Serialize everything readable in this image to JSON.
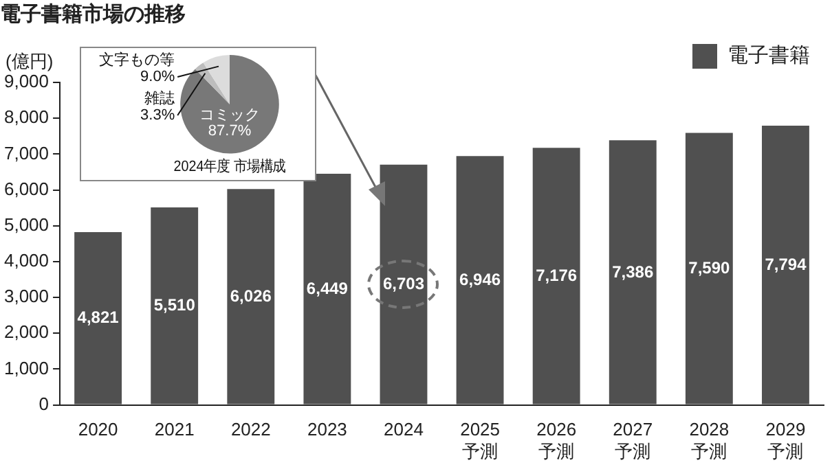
{
  "chart_data": [
    {
      "type": "bar",
      "title": "電子書籍市場の推移",
      "ylabel": "(億円)",
      "categories": [
        "2020",
        "2021",
        "2022",
        "2023",
        "2024",
        "2025\n予測",
        "2026\n予測",
        "2027\n予測",
        "2028\n予測",
        "2029\n予測"
      ],
      "series": [
        {
          "name": "電子書籍",
          "color": "#505050",
          "values": [
            4821,
            5510,
            6026,
            6449,
            6703,
            6946,
            7176,
            7386,
            7590,
            7794
          ],
          "value_labels": [
            "4,821",
            "5,510",
            "6,026",
            "6,449",
            "6,703",
            "6,946",
            "7,176",
            "7,386",
            "7,590",
            "7,794"
          ]
        }
      ],
      "ylim": [
        0,
        9000
      ],
      "yticks": [
        0,
        {
          "value": 1000,
          "label": "1,000"
        },
        {
          "value": 2000,
          "label": "2,000"
        },
        {
          "value": 3000,
          "label": "3,000"
        },
        {
          "value": 4000,
          "label": "4,000"
        },
        {
          "value": 5000,
          "label": "5,000"
        },
        {
          "value": 6000,
          "label": "6,000"
        },
        {
          "value": 7000,
          "label": "7,000"
        },
        {
          "value": 8000,
          "label": "8,000"
        },
        {
          "value": 9000,
          "label": "9,000"
        }
      ],
      "legend": "top right"
    },
    {
      "type": "pie",
      "title": "2024年度 市場構成",
      "categories": [
        "コミック",
        "雑誌",
        "文字もの等"
      ],
      "values": [
        87.7,
        3.3,
        9.0
      ],
      "colors": [
        "#787878",
        "#bdbdbd",
        "#dcdcdc"
      ],
      "value_labels": [
        "87.7%",
        "3.3%",
        "9.0%"
      ]
    }
  ]
}
